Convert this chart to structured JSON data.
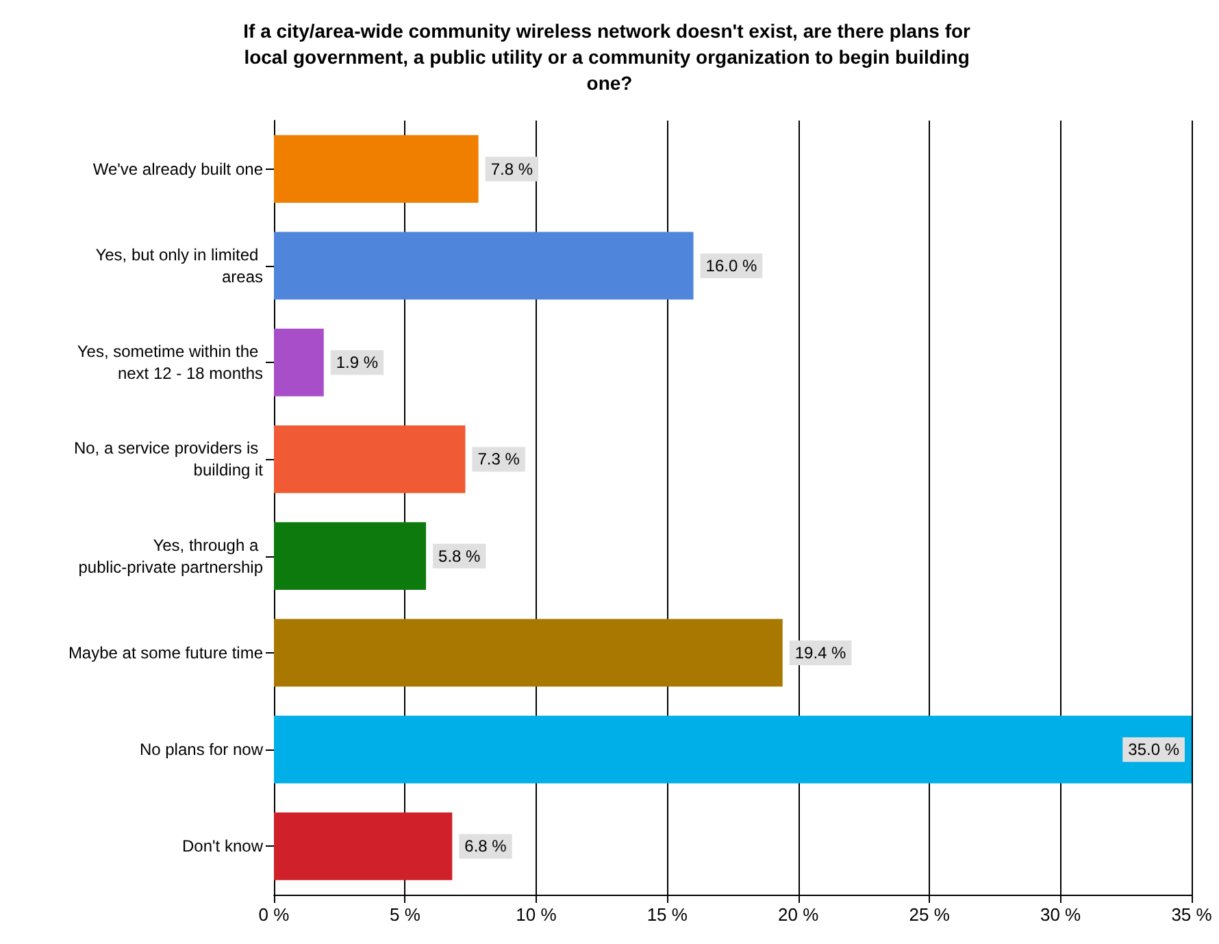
{
  "chart_data": {
    "type": "bar",
    "orientation": "horizontal",
    "title": "If a city/area-wide community wireless network doesn't exist, are there plans for local government, a public utility or a community organization to begin building one?",
    "categories": [
      "We've already built one",
      "Yes, but only in limited areas",
      "Yes, sometime within the next 12 - 18 months",
      "No, a service providers is building it",
      "Yes, through a public-private partnership",
      "Maybe at some future time",
      "No plans for now",
      "Don't know"
    ],
    "values": [
      7.8,
      16.0,
      1.9,
      7.3,
      5.8,
      19.4,
      35.0,
      6.8
    ],
    "value_labels": [
      "7.8 %",
      "16.0 %",
      "1.9 %",
      "7.3 %",
      "5.8 %",
      "19.4 %",
      "35.0 %",
      "6.8 %"
    ],
    "colors": [
      "#f07f00",
      "#4f86dc",
      "#a84ec8",
      "#f05a35",
      "#0d7a0d",
      "#a87800",
      "#00aee8",
      "#d0202a"
    ],
    "xlim": [
      0,
      35
    ],
    "xticks": [
      {
        "value": 0,
        "label": "0 %"
      },
      {
        "value": 5,
        "label": "5 %"
      },
      {
        "value": 10,
        "label": "10 %"
      },
      {
        "value": 15,
        "label": "15 %"
      },
      {
        "value": 20,
        "label": "20 %"
      },
      {
        "value": 25,
        "label": "25 %"
      },
      {
        "value": 30,
        "label": "30 %"
      },
      {
        "value": 35,
        "label": "35 %"
      }
    ],
    "grid": "x"
  }
}
